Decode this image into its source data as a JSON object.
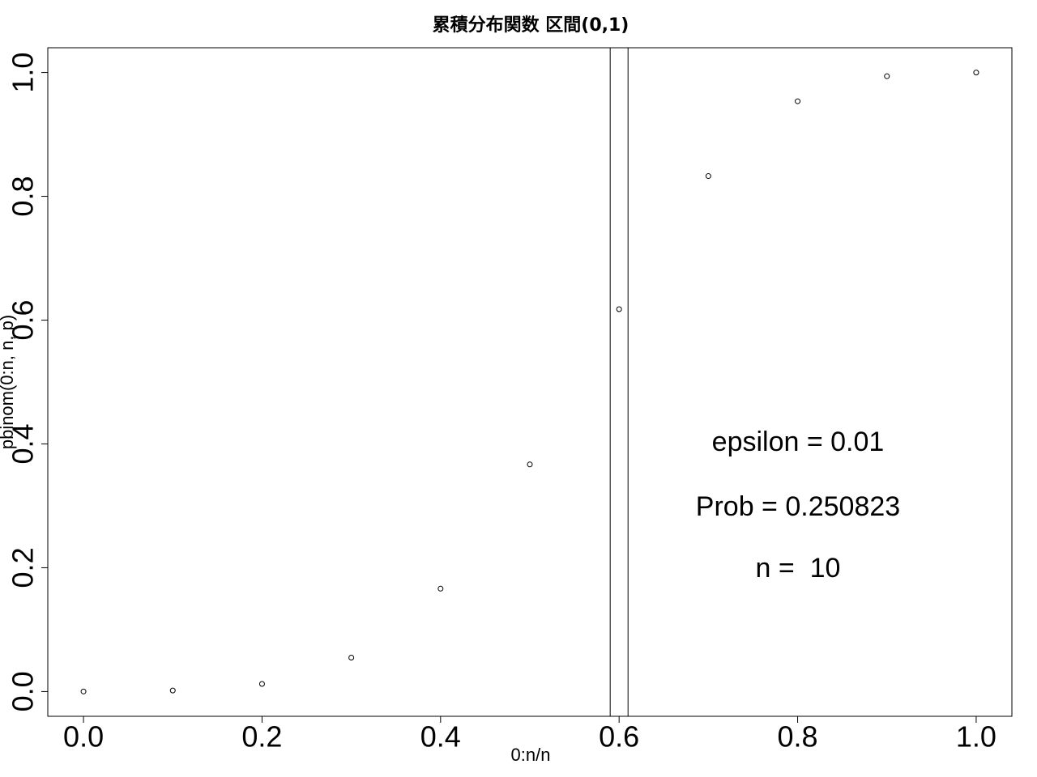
{
  "chart_data": {
    "type": "scatter",
    "title": "累積分布関数 区間(0,1)",
    "xlabel": "0:n/n",
    "ylabel": "pbinom(0:n, n, p)",
    "xlim": [
      -0.04,
      1.04
    ],
    "ylim": [
      -0.04,
      1.04
    ],
    "x_ticks": [
      "0.0",
      "0.2",
      "0.4",
      "0.6",
      "0.8",
      "1.0"
    ],
    "y_ticks": [
      "0.0",
      "0.2",
      "0.4",
      "0.6",
      "0.8",
      "1.0"
    ],
    "grid": false,
    "legend": "none",
    "marker": "open-circle",
    "points": [
      {
        "x": 0.0,
        "y": 0.0001
      },
      {
        "x": 0.1,
        "y": 0.0017
      },
      {
        "x": 0.2,
        "y": 0.0123
      },
      {
        "x": 0.3,
        "y": 0.0548
      },
      {
        "x": 0.4,
        "y": 0.1662
      },
      {
        "x": 0.5,
        "y": 0.3669
      },
      {
        "x": 0.6,
        "y": 0.6177
      },
      {
        "x": 0.7,
        "y": 0.8327
      },
      {
        "x": 0.8,
        "y": 0.9536
      },
      {
        "x": 0.9,
        "y": 0.994
      },
      {
        "x": 1.0,
        "y": 1.0
      }
    ],
    "vlines": [
      0.59,
      0.61
    ],
    "annotations": [
      "epsilon = 0.01",
      "Prob = 0.250823",
      "n =  10"
    ]
  }
}
